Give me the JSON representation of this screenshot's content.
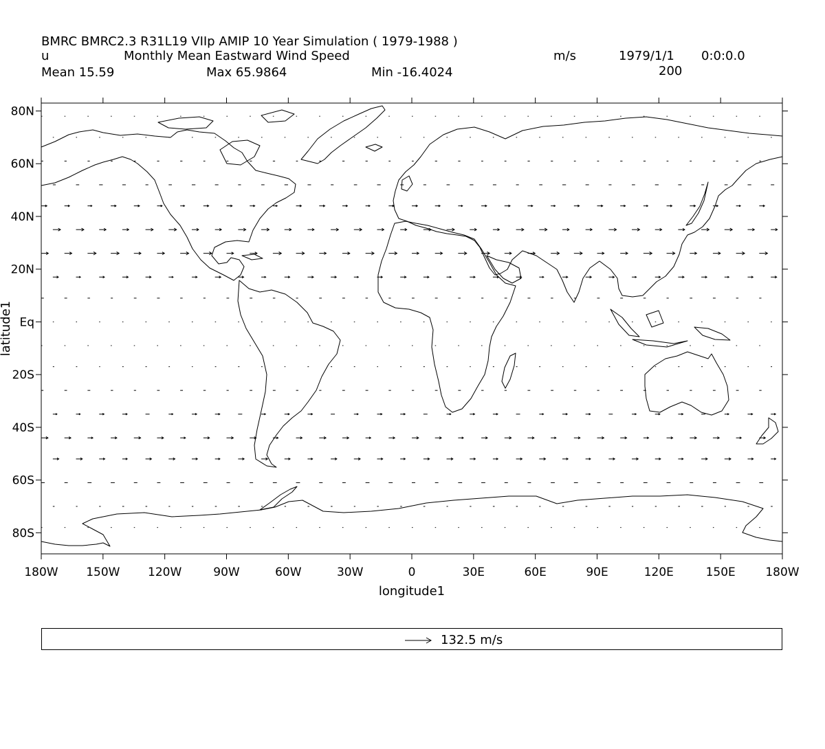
{
  "header": {
    "model_line": "BMRC BMRC2.3 R31L19 VIIp AMIP 10 Year Simulation ( 1979-1988 )",
    "variable": "u",
    "long_name": "Monthly Mean Eastward Wind Speed",
    "units": "m/s",
    "date": "1979/1/1",
    "time": "0:0:0.0",
    "level": "200",
    "mean_label": "Mean 15.59",
    "max_label": "Max 65.9864",
    "min_label": "Min -16.4024"
  },
  "map": {
    "projection": "equirectangular",
    "lon_range": [
      -180,
      180
    ],
    "lat_range": [
      -88,
      83
    ],
    "coastlines": true
  },
  "axes": {
    "xlabel": "longitude1",
    "ylabel": "latitude1",
    "x_ticks": [
      {
        "value": -180,
        "label": "180W"
      },
      {
        "value": -150,
        "label": "150W"
      },
      {
        "value": -120,
        "label": "120W"
      },
      {
        "value": -90,
        "label": "90W"
      },
      {
        "value": -60,
        "label": "60W"
      },
      {
        "value": -30,
        "label": "30W"
      },
      {
        "value": 0,
        "label": "0"
      },
      {
        "value": 30,
        "label": "30E"
      },
      {
        "value": 60,
        "label": "60E"
      },
      {
        "value": 90,
        "label": "90E"
      },
      {
        "value": 120,
        "label": "120E"
      },
      {
        "value": 150,
        "label": "150E"
      },
      {
        "value": 180,
        "label": "180W"
      }
    ],
    "y_ticks": [
      {
        "value": 80,
        "label": "80N"
      },
      {
        "value": 60,
        "label": "60N"
      },
      {
        "value": 40,
        "label": "40N"
      },
      {
        "value": 20,
        "label": "20N"
      },
      {
        "value": 0,
        "label": "Eq"
      },
      {
        "value": -20,
        "label": "20S"
      },
      {
        "value": -40,
        "label": "40S"
      },
      {
        "value": -60,
        "label": "60S"
      },
      {
        "value": -80,
        "label": "80S"
      }
    ]
  },
  "vectors": {
    "grid_lon_start": -180,
    "grid_lon_step": 11.25,
    "grid_lat": [
      78,
      70,
      61,
      52,
      44,
      35,
      26,
      17,
      9,
      0,
      -9,
      -17,
      -26,
      -35,
      -44,
      -52,
      -61,
      -70,
      -78
    ],
    "u_by_lat": [
      2,
      4,
      10,
      16,
      25,
      35,
      38,
      26,
      12,
      3,
      2,
      6,
      12,
      22,
      30,
      28,
      18,
      8,
      3
    ],
    "reference_speed": 132.5,
    "reference_label": "132.5 m/s"
  }
}
